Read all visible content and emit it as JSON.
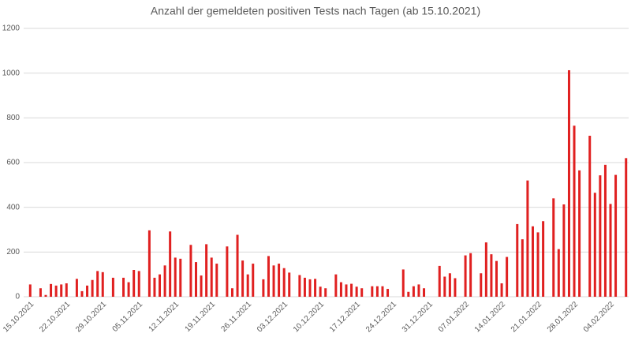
{
  "chart_data": {
    "type": "bar",
    "title": "Anzahl der gemeldeten positiven Tests nach Tagen (ab 15.10.2021)",
    "categories": [
      "15.10.2021",
      null,
      null,
      null,
      null,
      null,
      null,
      "22.10.2021",
      null,
      null,
      null,
      null,
      null,
      null,
      "29.10.2021",
      null,
      null,
      null,
      null,
      null,
      null,
      "05.11.2021",
      null,
      null,
      null,
      null,
      null,
      null,
      "12.11.2021",
      null,
      null,
      null,
      null,
      null,
      null,
      "19.11.2021",
      null,
      null,
      null,
      null,
      null,
      null,
      "26.11.2021",
      null,
      null,
      null,
      null,
      null,
      null,
      "03.12.2021",
      null,
      null,
      null,
      null,
      null,
      null,
      "10.12.2021",
      null,
      null,
      null,
      null,
      null,
      null,
      "17.12.2021",
      null,
      null,
      null,
      null,
      null,
      null,
      "24.12.2021",
      null,
      null,
      null,
      null,
      null,
      null,
      "31.12.2021",
      null,
      null,
      null,
      null,
      null,
      null,
      "07.01.2022",
      null,
      null,
      null,
      null,
      null,
      null,
      "14.01.2022",
      null,
      null,
      null,
      null,
      null,
      null,
      "21.01.2022",
      null,
      null,
      null,
      null,
      null,
      null,
      "28.01.2022",
      null,
      null,
      null,
      null,
      null,
      null,
      "04.02.2022",
      null,
      null,
      null
    ],
    "values": [
      55,
      0,
      38,
      8,
      57,
      50,
      55,
      60,
      0,
      80,
      25,
      50,
      75,
      115,
      110,
      0,
      85,
      0,
      85,
      65,
      120,
      115,
      0,
      297,
      85,
      100,
      140,
      292,
      175,
      170,
      0,
      232,
      155,
      95,
      235,
      175,
      148,
      0,
      225,
      38,
      277,
      162,
      100,
      148,
      0,
      78,
      182,
      140,
      148,
      128,
      108,
      0,
      97,
      85,
      78,
      80,
      45,
      38,
      0,
      100,
      65,
      55,
      58,
      45,
      38,
      0,
      47,
      47,
      47,
      35,
      0,
      0,
      122,
      22,
      47,
      55,
      38,
      0,
      0,
      138,
      90,
      105,
      83,
      0,
      185,
      195,
      0,
      105,
      243,
      190,
      160,
      60,
      178,
      0,
      325,
      257,
      520,
      315,
      288,
      338,
      0,
      440,
      213,
      413,
      1013,
      765,
      565,
      0,
      720,
      465,
      543,
      590,
      415,
      545,
      0,
      620
    ],
    "color": "#e02020",
    "ylim": [
      0,
      1200
    ],
    "yticks": [
      0,
      200,
      400,
      600,
      800,
      1000,
      1200
    ],
    "grid": true
  }
}
